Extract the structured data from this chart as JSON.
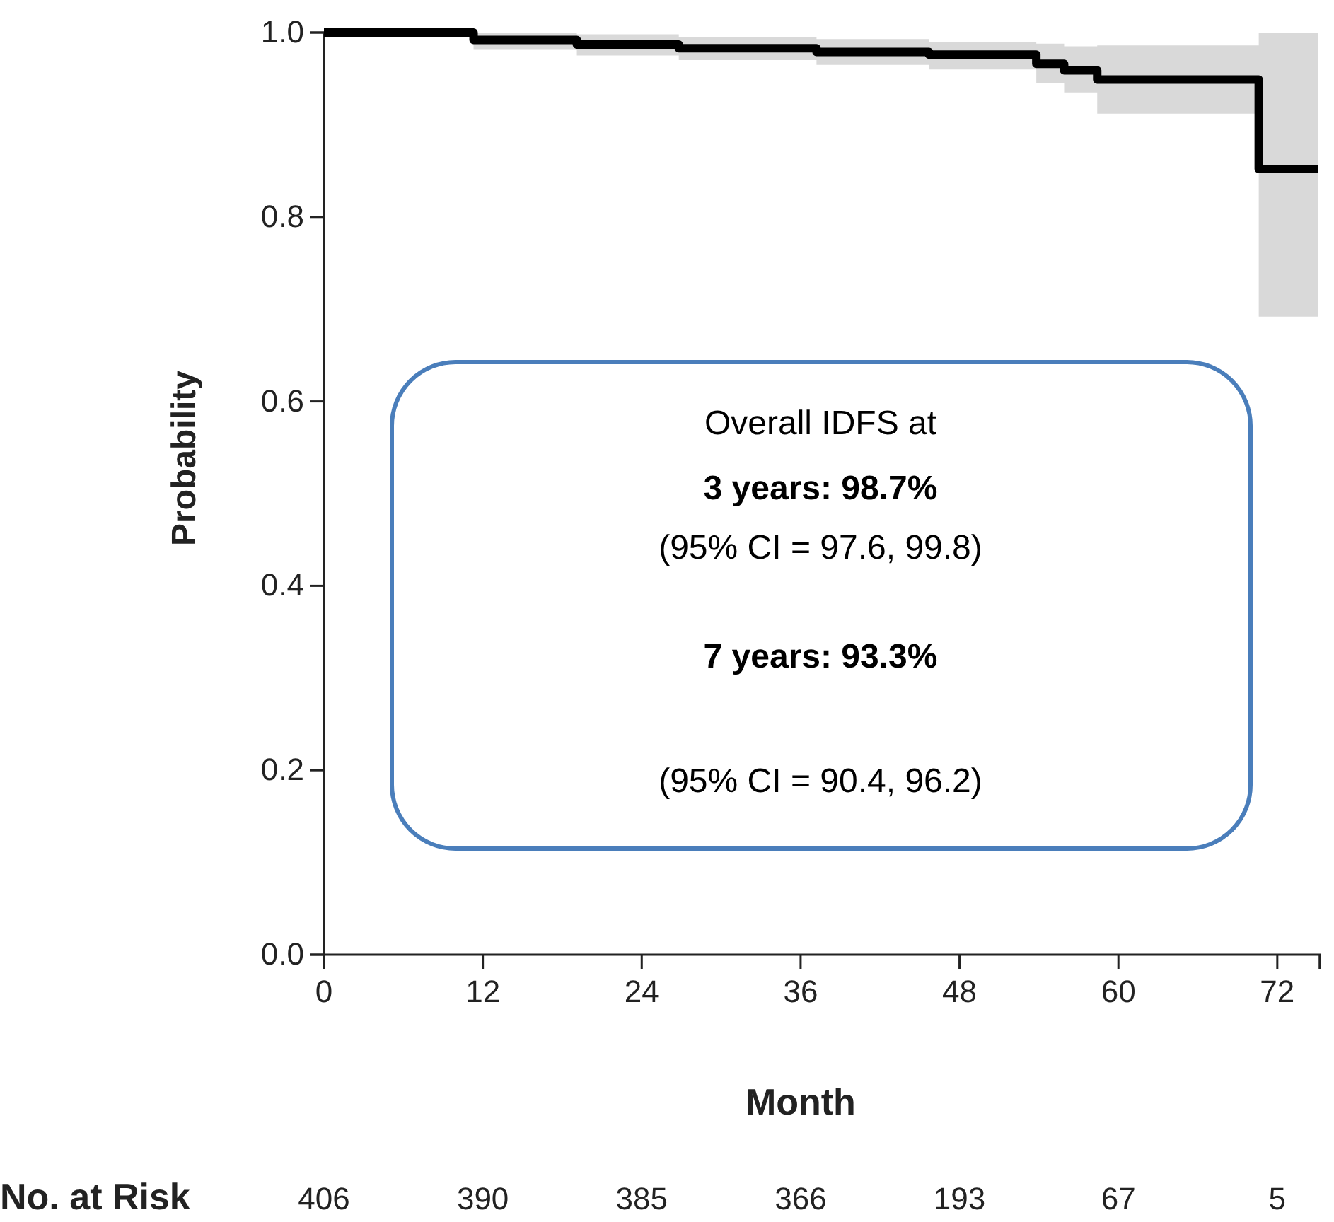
{
  "chart_data": {
    "type": "step",
    "xlabel": "Month",
    "ylabel": "Probability",
    "xlim": [
      0,
      75.2
    ],
    "xticks": [
      0,
      12,
      24,
      36,
      48,
      60,
      72
    ],
    "ylim": [
      0,
      1
    ],
    "yticks": [
      {
        "value": 0,
        "label": "0.0"
      },
      {
        "value": 0.2,
        "label": "0.2"
      },
      {
        "value": 0.4,
        "label": "0.4"
      },
      {
        "value": 0.6,
        "label": "0.6"
      },
      {
        "value": 0.8,
        "label": "0.8"
      },
      {
        "value": 1,
        "label": "1.0"
      }
    ],
    "grid": false,
    "series": [
      {
        "color": "#000000",
        "x": [
          0,
          11.3,
          19.1,
          26.8,
          37.2,
          45.7,
          53.8,
          55.9,
          58.4,
          70.6,
          75.1
        ],
        "values": [
          1.0,
          0.992,
          0.987,
          0.983,
          0.979,
          0.976,
          0.966,
          0.959,
          0.949,
          0.852,
          0.852
        ],
        "lower": [
          1.0,
          0.982,
          0.975,
          0.97,
          0.965,
          0.96,
          0.945,
          0.935,
          0.912,
          0.692,
          0.692
        ],
        "upper": [
          1.0,
          1.0,
          0.998,
          0.995,
          0.993,
          0.99,
          0.988,
          0.985,
          0.986,
          1.0,
          1.0
        ]
      }
    ],
    "annotations": [
      "Overall IDFS at",
      "3 years: 98.7%",
      "(95% CI = 97.6, 99.8)",
      "7 years: 93.3%",
      "(95% CI = 90.4, 96.2)",
      "No. at Risk",
      "406",
      "390",
      "385",
      "366",
      "193",
      "67",
      "5"
    ]
  }
}
